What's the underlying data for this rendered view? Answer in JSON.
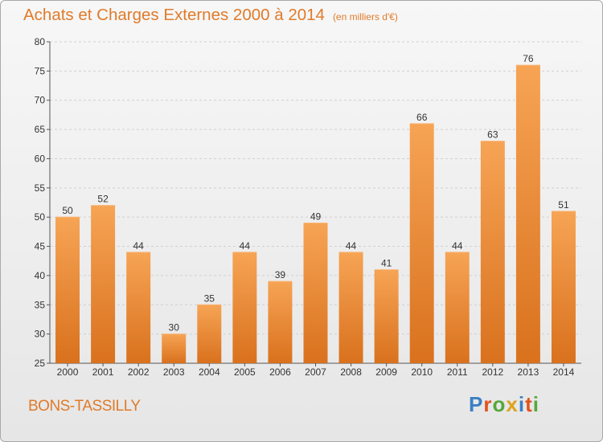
{
  "title": "Achats et Charges Externes 2000 à 2014",
  "subtitle": "(en milliers d'€)",
  "commune": "BONS-TASSILLY",
  "brand": "Proxiti",
  "colors": {
    "accent": "#e07b2a",
    "bar_top": "#f6a455",
    "bar_bottom": "#d9711d",
    "logo": [
      "#3b7fc4",
      "#e0531c",
      "#55a83a",
      "#e0a21c",
      "#3b7fc4",
      "#e0531c",
      "#55a83a"
    ]
  },
  "chart_data": {
    "type": "bar",
    "title": "Achats et Charges Externes 2000 à 2014",
    "subtitle": "(en milliers d'€)",
    "categories": [
      "2000",
      "2001",
      "2002",
      "2003",
      "2004",
      "2005",
      "2006",
      "2007",
      "2008",
      "2009",
      "2010",
      "2011",
      "2012",
      "2013",
      "2014"
    ],
    "values": [
      50,
      52,
      44,
      30,
      35,
      44,
      39,
      49,
      44,
      41,
      66,
      44,
      63,
      76,
      51
    ],
    "ylim": [
      25,
      80
    ],
    "yticks": [
      25,
      30,
      35,
      40,
      45,
      50,
      55,
      60,
      65,
      70,
      75,
      80
    ],
    "grid": true,
    "data_labels": true
  }
}
